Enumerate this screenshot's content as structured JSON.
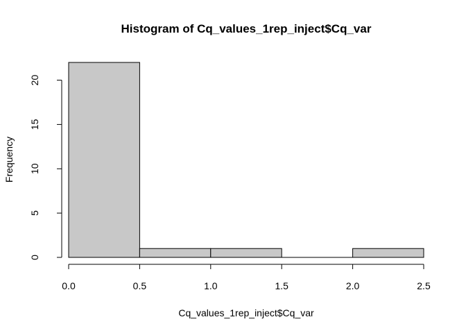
{
  "chart_data": {
    "type": "bar",
    "subtype": "histogram",
    "title": "Histogram of Cq_values_1rep_inject$Cq_var",
    "xlabel": "Cq_values_1rep_inject$Cq_var",
    "ylabel": "Frequency",
    "bins": [
      {
        "from": 0.0,
        "to": 0.5,
        "count": 22
      },
      {
        "from": 0.5,
        "to": 1.0,
        "count": 1
      },
      {
        "from": 1.0,
        "to": 1.5,
        "count": 1
      },
      {
        "from": 1.5,
        "to": 2.0,
        "count": 0
      },
      {
        "from": 2.0,
        "to": 2.5,
        "count": 1
      }
    ],
    "xticks": [
      "0.0",
      "0.5",
      "1.0",
      "1.5",
      "2.0",
      "2.5"
    ],
    "yticks": [
      "0",
      "5",
      "10",
      "15",
      "20"
    ],
    "xlim": [
      0.0,
      2.5
    ],
    "ylim": [
      0,
      22
    ],
    "grid": false,
    "bar_fill": "#c8c8c8",
    "bar_stroke": "#000000"
  }
}
